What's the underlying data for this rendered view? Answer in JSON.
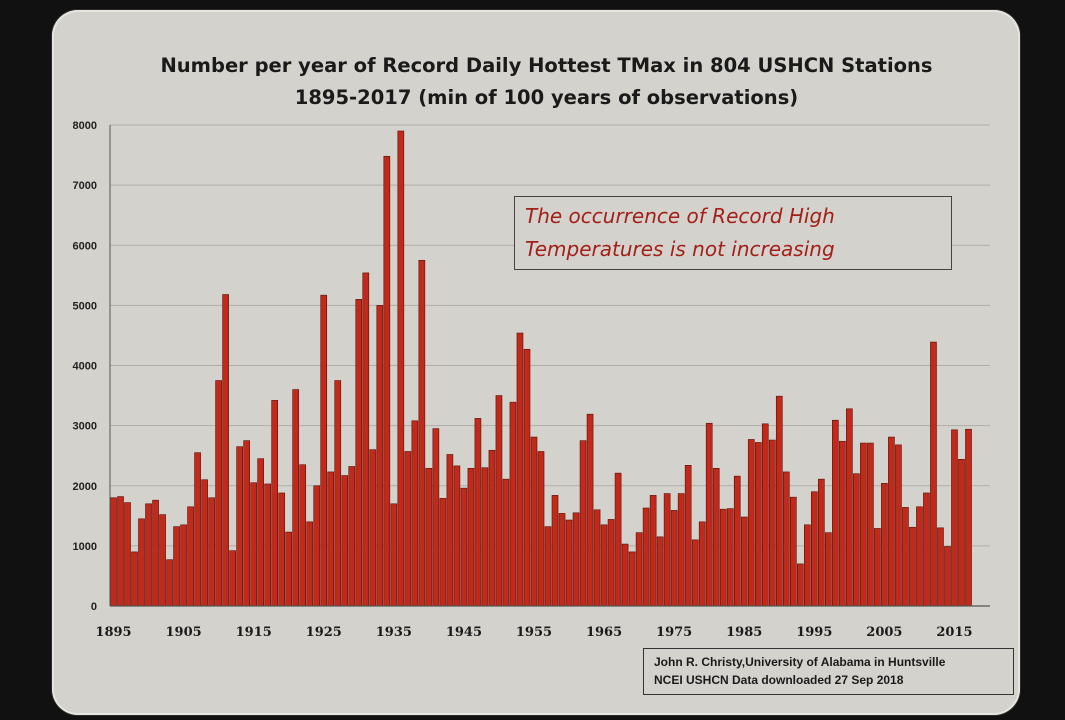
{
  "title": {
    "line1": "Number per year of Record Daily Hottest TMax in 804 USHCN Stations",
    "line2": "1895-2017 (min of 100 years of observations)"
  },
  "callout": {
    "line1": "The occurrence of Record High",
    "line2": "Temperatures is not increasing"
  },
  "credit": {
    "line1": "John R. Christy,University of Alabama in Huntsville",
    "line2": "NCEI USHCN Data downloaded 27 Sep 2018"
  },
  "colors": {
    "bar_fill": "#c12a1a",
    "bar_stroke": "#5a0f08",
    "grid": "#b0aea8",
    "axis": "#555555"
  },
  "chart_data": {
    "type": "bar",
    "title": "Number per year of Record Daily Hottest TMax in 804 USHCN Stations 1895-2017 (min of 100 years of observations)",
    "xlabel": "",
    "ylabel": "",
    "ylim": [
      0,
      8000
    ],
    "yticks": [
      0,
      1000,
      2000,
      3000,
      4000,
      5000,
      6000,
      7000,
      8000
    ],
    "xtick_labels": [
      "1895",
      "1905",
      "1915",
      "1925",
      "1935",
      "1945",
      "1955",
      "1965",
      "1975",
      "1985",
      "1995",
      "2005",
      "2015"
    ],
    "grid": true,
    "legend": "none",
    "categories": [
      1895,
      1896,
      1897,
      1898,
      1899,
      1900,
      1901,
      1902,
      1903,
      1904,
      1905,
      1906,
      1907,
      1908,
      1909,
      1910,
      1911,
      1912,
      1913,
      1914,
      1915,
      1916,
      1917,
      1918,
      1919,
      1920,
      1921,
      1922,
      1923,
      1924,
      1925,
      1926,
      1927,
      1928,
      1929,
      1930,
      1931,
      1932,
      1933,
      1934,
      1935,
      1936,
      1937,
      1938,
      1939,
      1940,
      1941,
      1942,
      1943,
      1944,
      1945,
      1946,
      1947,
      1948,
      1949,
      1950,
      1951,
      1952,
      1953,
      1954,
      1955,
      1956,
      1957,
      1958,
      1959,
      1960,
      1961,
      1962,
      1963,
      1964,
      1965,
      1966,
      1967,
      1968,
      1969,
      1970,
      1971,
      1972,
      1973,
      1974,
      1975,
      1976,
      1977,
      1978,
      1979,
      1980,
      1981,
      1982,
      1983,
      1984,
      1985,
      1986,
      1987,
      1988,
      1989,
      1990,
      1991,
      1992,
      1993,
      1994,
      1995,
      1996,
      1997,
      1998,
      1999,
      2000,
      2001,
      2002,
      2003,
      2004,
      2005,
      2006,
      2007,
      2008,
      2009,
      2010,
      2011,
      2012,
      2013,
      2014,
      2015,
      2016,
      2017
    ],
    "values": [
      1800,
      1820,
      1720,
      900,
      1450,
      1700,
      1760,
      1520,
      770,
      1320,
      1350,
      1650,
      2550,
      2100,
      1800,
      3750,
      5180,
      920,
      2650,
      2750,
      2050,
      2450,
      2030,
      3420,
      1880,
      1230,
      3600,
      2350,
      1400,
      2000,
      5170,
      2230,
      3750,
      2170,
      2320,
      5100,
      5540,
      2600,
      5000,
      7480,
      1700,
      7900,
      2570,
      3080,
      5750,
      2290,
      2950,
      1790,
      2520,
      2330,
      1960,
      2290,
      3120,
      2300,
      2590,
      3500,
      2110,
      3390,
      4540,
      4270,
      2810,
      2570,
      1320,
      1840,
      1540,
      1430,
      1550,
      2750,
      3190,
      1600,
      1350,
      1440,
      2210,
      1030,
      900,
      1220,
      1630,
      1840,
      1150,
      1870,
      1590,
      1870,
      2340,
      1100,
      1400,
      3040,
      2290,
      1610,
      1620,
      2160,
      1480,
      2770,
      2720,
      3030,
      2760,
      3490,
      2230,
      1810,
      700,
      1350,
      1900,
      2110,
      1220,
      3090,
      2740,
      3280,
      2200,
      2710,
      2710,
      1290,
      2040,
      2810,
      2680,
      1640,
      1310,
      1650,
      1880,
      4390,
      1300,
      990,
      2930,
      2440,
      2940
    ]
  }
}
